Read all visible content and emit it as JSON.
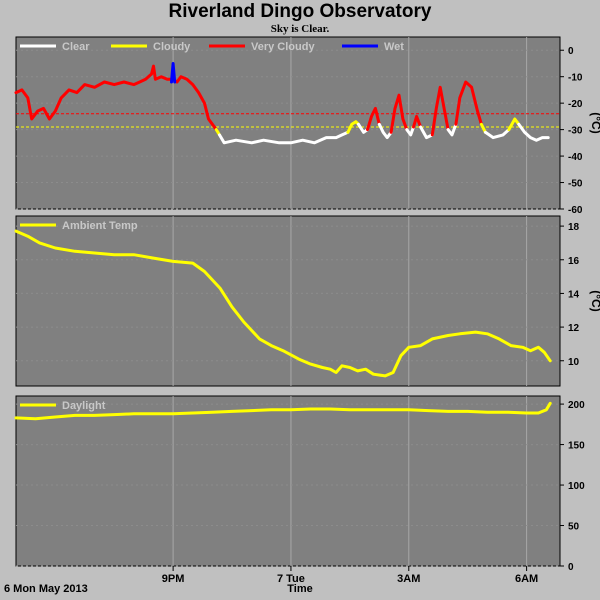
{
  "title": "Riverland Dingo Observatory",
  "subtitle": "Sky is Clear.",
  "x_axis": {
    "ticks": [
      "9PM",
      "7 Tue",
      "3AM",
      "6AM"
    ],
    "title": "Time",
    "date": "6 Mon May 2013"
  },
  "colors": {
    "background": "#c0c0c0",
    "panel": "#808080",
    "clear": "#ffffff",
    "cloudy": "#ffff00",
    "very_cloudy": "#ff0000",
    "wet": "#0000ff"
  },
  "chart_data": [
    {
      "type": "line",
      "name": "sky-temperature",
      "ylabel": "(°C)",
      "ylim": [
        -60,
        5
      ],
      "yticks": [
        0,
        -10,
        -20,
        -30,
        -40,
        -50,
        -60
      ],
      "legend": [
        {
          "label": "Clear",
          "color": "#ffffff"
        },
        {
          "label": "Cloudy",
          "color": "#ffff00"
        },
        {
          "label": "Very Cloudy",
          "color": "#ff0000"
        },
        {
          "label": "Wet",
          "color": "#0000ff"
        }
      ],
      "thresholds": [
        {
          "y": -24,
          "color": "#ff0000"
        },
        {
          "y": -29,
          "color": "#ffff00"
        }
      ],
      "segments": [
        {
          "state": "very_cloudy",
          "color": "#ff0000",
          "points": [
            [
              17.0,
              -16
            ],
            [
              17.15,
              -15
            ],
            [
              17.3,
              -18
            ],
            [
              17.4,
              -26
            ],
            [
              17.55,
              -23
            ],
            [
              17.7,
              -22
            ],
            [
              17.85,
              -26
            ],
            [
              18.0,
              -23
            ],
            [
              18.15,
              -18
            ],
            [
              18.35,
              -15
            ],
            [
              18.55,
              -16
            ],
            [
              18.75,
              -13
            ],
            [
              19.0,
              -14
            ],
            [
              19.25,
              -12
            ],
            [
              19.5,
              -13
            ],
            [
              19.75,
              -12
            ],
            [
              20.0,
              -13
            ],
            [
              20.15,
              -12
            ],
            [
              20.3,
              -11
            ],
            [
              20.45,
              -9
            ],
            [
              20.5,
              -6
            ],
            [
              20.55,
              -11
            ],
            [
              20.7,
              -10
            ],
            [
              20.85,
              -11
            ],
            [
              21.0,
              -11
            ],
            [
              21.1,
              -12
            ],
            [
              21.2,
              -10
            ],
            [
              21.35,
              -11
            ],
            [
              21.5,
              -13
            ],
            [
              21.65,
              -16
            ],
            [
              21.8,
              -20
            ],
            [
              21.9,
              -26
            ],
            [
              22.0,
              -28
            ],
            [
              22.1,
              -30
            ]
          ]
        },
        {
          "state": "wet",
          "color": "#0000ff",
          "points": [
            [
              20.96,
              -12
            ],
            [
              21.0,
              -5
            ],
            [
              21.04,
              -12
            ]
          ]
        },
        {
          "state": "cloudy",
          "color": "#ffff00",
          "points": [
            [
              22.1,
              -30
            ],
            [
              22.18,
              -32
            ]
          ]
        },
        {
          "state": "clear",
          "color": "#ffffff",
          "points": [
            [
              22.18,
              -32
            ],
            [
              22.3,
              -35
            ],
            [
              22.6,
              -34
            ],
            [
              23.0,
              -35
            ],
            [
              23.3,
              -34
            ],
            [
              23.7,
              -35
            ],
            [
              24.0,
              -35
            ],
            [
              24.3,
              -34
            ],
            [
              24.6,
              -35
            ],
            [
              24.9,
              -33
            ],
            [
              25.15,
              -33
            ],
            [
              25.3,
              -32
            ],
            [
              25.45,
              -31
            ]
          ]
        },
        {
          "state": "cloudy",
          "color": "#ffff00",
          "points": [
            [
              25.45,
              -31
            ],
            [
              25.55,
              -28
            ],
            [
              25.65,
              -27
            ],
            [
              25.72,
              -28
            ]
          ]
        },
        {
          "state": "clear",
          "color": "#ffffff",
          "points": [
            [
              25.72,
              -28
            ],
            [
              25.85,
              -31
            ],
            [
              25.95,
              -30
            ]
          ]
        },
        {
          "state": "very_cloudy",
          "color": "#ff0000",
          "points": [
            [
              25.95,
              -30
            ],
            [
              26.05,
              -25
            ],
            [
              26.15,
              -22
            ],
            [
              26.25,
              -28
            ]
          ]
        },
        {
          "state": "clear",
          "color": "#ffffff",
          "points": [
            [
              26.25,
              -28
            ],
            [
              26.35,
              -31
            ],
            [
              26.45,
              -33
            ],
            [
              26.55,
              -31
            ]
          ]
        },
        {
          "state": "very_cloudy",
          "color": "#ff0000",
          "points": [
            [
              26.55,
              -31
            ],
            [
              26.65,
              -22
            ],
            [
              26.75,
              -17
            ],
            [
              26.85,
              -26
            ],
            [
              26.95,
              -30
            ]
          ]
        },
        {
          "state": "clear",
          "color": "#ffffff",
          "points": [
            [
              26.95,
              -30
            ],
            [
              27.05,
              -32
            ],
            [
              27.12,
              -29
            ]
          ]
        },
        {
          "state": "very_cloudy",
          "color": "#ff0000",
          "points": [
            [
              27.12,
              -29
            ],
            [
              27.2,
              -25
            ],
            [
              27.3,
              -29
            ]
          ]
        },
        {
          "state": "clear",
          "color": "#ffffff",
          "points": [
            [
              27.3,
              -29
            ],
            [
              27.45,
              -33
            ],
            [
              27.6,
              -32
            ]
          ]
        },
        {
          "state": "very_cloudy",
          "color": "#ff0000",
          "points": [
            [
              27.6,
              -32
            ],
            [
              27.7,
              -22
            ],
            [
              27.8,
              -14
            ],
            [
              27.9,
              -22
            ],
            [
              28.0,
              -30
            ]
          ]
        },
        {
          "state": "clear",
          "color": "#ffffff",
          "points": [
            [
              28.0,
              -30
            ],
            [
              28.1,
              -32
            ],
            [
              28.2,
              -28
            ]
          ]
        },
        {
          "state": "very_cloudy",
          "color": "#ff0000",
          "points": [
            [
              28.2,
              -28
            ],
            [
              28.3,
              -18
            ],
            [
              28.45,
              -12
            ],
            [
              28.6,
              -14
            ],
            [
              28.75,
              -23
            ],
            [
              28.85,
              -28
            ]
          ]
        },
        {
          "state": "cloudy",
          "color": "#ffff00",
          "points": [
            [
              28.85,
              -28
            ],
            [
              28.95,
              -31
            ]
          ]
        },
        {
          "state": "clear",
          "color": "#ffffff",
          "points": [
            [
              28.95,
              -31
            ],
            [
              29.15,
              -33
            ],
            [
              29.4,
              -32
            ],
            [
              29.55,
              -30
            ]
          ]
        },
        {
          "state": "cloudy",
          "color": "#ffff00",
          "points": [
            [
              29.55,
              -30
            ],
            [
              29.7,
              -26
            ],
            [
              29.8,
              -28
            ]
          ]
        },
        {
          "state": "clear",
          "color": "#ffffff",
          "points": [
            [
              29.8,
              -28
            ],
            [
              29.95,
              -31
            ],
            [
              30.1,
              -33
            ],
            [
              30.25,
              -34
            ],
            [
              30.4,
              -33
            ],
            [
              30.55,
              -33
            ]
          ]
        }
      ]
    },
    {
      "type": "line",
      "name": "ambient-temperature",
      "ylabel": "(°C)",
      "ylim": [
        8.5,
        18.6
      ],
      "yticks": [
        10,
        12,
        14,
        16,
        18
      ],
      "series": [
        {
          "name": "Ambient Temp",
          "color": "#ffff00",
          "points": [
            [
              17.0,
              17.7
            ],
            [
              17.3,
              17.4
            ],
            [
              17.6,
              17.0
            ],
            [
              18.0,
              16.7
            ],
            [
              18.5,
              16.5
            ],
            [
              19.0,
              16.4
            ],
            [
              19.5,
              16.3
            ],
            [
              20.0,
              16.3
            ],
            [
              20.5,
              16.1
            ],
            [
              21.0,
              15.9
            ],
            [
              21.5,
              15.8
            ],
            [
              21.8,
              15.3
            ],
            [
              22.2,
              14.3
            ],
            [
              22.5,
              13.2
            ],
            [
              22.8,
              12.3
            ],
            [
              23.2,
              11.3
            ],
            [
              23.5,
              10.9
            ],
            [
              23.8,
              10.6
            ],
            [
              24.2,
              10.1
            ],
            [
              24.5,
              9.8
            ],
            [
              24.8,
              9.6
            ],
            [
              25.0,
              9.5
            ],
            [
              25.15,
              9.3
            ],
            [
              25.3,
              9.7
            ],
            [
              25.5,
              9.6
            ],
            [
              25.7,
              9.4
            ],
            [
              25.9,
              9.5
            ],
            [
              26.1,
              9.2
            ],
            [
              26.4,
              9.1
            ],
            [
              26.6,
              9.3
            ],
            [
              26.8,
              10.3
            ],
            [
              27.0,
              10.8
            ],
            [
              27.3,
              10.9
            ],
            [
              27.6,
              11.3
            ],
            [
              28.0,
              11.5
            ],
            [
              28.3,
              11.6
            ],
            [
              28.7,
              11.7
            ],
            [
              29.0,
              11.6
            ],
            [
              29.3,
              11.3
            ],
            [
              29.6,
              10.9
            ],
            [
              29.9,
              10.8
            ],
            [
              30.1,
              10.6
            ],
            [
              30.3,
              10.8
            ],
            [
              30.45,
              10.5
            ],
            [
              30.6,
              10.0
            ]
          ]
        }
      ]
    },
    {
      "type": "line",
      "name": "daylight",
      "ylim": [
        0,
        210
      ],
      "yticks": [
        0,
        50,
        100,
        150,
        200
      ],
      "series": [
        {
          "name": "Daylight",
          "color": "#ffff00",
          "points": [
            [
              17.0,
              183
            ],
            [
              17.5,
              182
            ],
            [
              18.0,
              184
            ],
            [
              18.5,
              186
            ],
            [
              19.0,
              186
            ],
            [
              19.5,
              187
            ],
            [
              20.0,
              188
            ],
            [
              20.5,
              188
            ],
            [
              21.0,
              188
            ],
            [
              21.5,
              189
            ],
            [
              22.0,
              190
            ],
            [
              22.5,
              191
            ],
            [
              23.0,
              192
            ],
            [
              23.5,
              193
            ],
            [
              24.0,
              193
            ],
            [
              24.5,
              194
            ],
            [
              25.0,
              194
            ],
            [
              25.5,
              193
            ],
            [
              26.0,
              193
            ],
            [
              26.5,
              193
            ],
            [
              27.0,
              193
            ],
            [
              27.5,
              192
            ],
            [
              28.0,
              191
            ],
            [
              28.5,
              191
            ],
            [
              29.0,
              190
            ],
            [
              29.5,
              190
            ],
            [
              30.0,
              189
            ],
            [
              30.3,
              189
            ],
            [
              30.5,
              193
            ],
            [
              30.6,
              201
            ]
          ]
        }
      ]
    }
  ]
}
